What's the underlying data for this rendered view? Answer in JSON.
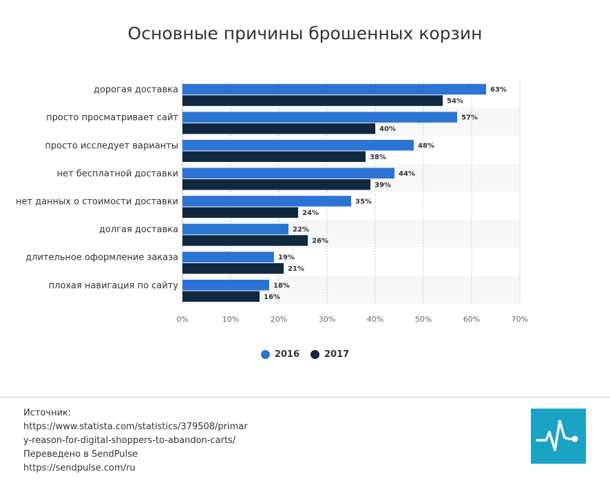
{
  "chart_data": {
    "type": "bar",
    "orientation": "horizontal",
    "title": "Основные причины брошенных корзин",
    "categories": [
      "дорогая доставка",
      "просто просматривает сайт",
      "просто исследует варианты",
      "нет бесплатной доставки",
      "нет данных о стоимости доставки",
      "долгая доставка",
      "длительное оформление заказа",
      "плохая навигация по сайту"
    ],
    "series": [
      {
        "name": "2016",
        "color": "#2b74d6",
        "values": [
          63,
          57,
          48,
          44,
          35,
          22,
          19,
          18
        ]
      },
      {
        "name": "2017",
        "color": "#102840",
        "values": [
          54,
          40,
          38,
          39,
          24,
          26,
          21,
          16
        ]
      }
    ],
    "value_suffix": "%",
    "xlim": [
      0,
      70
    ],
    "xticks": [
      "0%",
      "10%",
      "20%",
      "30%",
      "40%",
      "50%",
      "60%",
      "70%"
    ],
    "grid": true,
    "legend_position": "bottom-center"
  },
  "footer": {
    "lines": [
      "Источник:",
      "https://www.statista.com/statistics/379508/primar",
      "y-reason-for-digital-shoppers-to-abandon-carts/",
      "Переведено в SendPulse",
      "https://sendpulse.com/ru"
    ],
    "logo_color": "#1ba3c6"
  }
}
